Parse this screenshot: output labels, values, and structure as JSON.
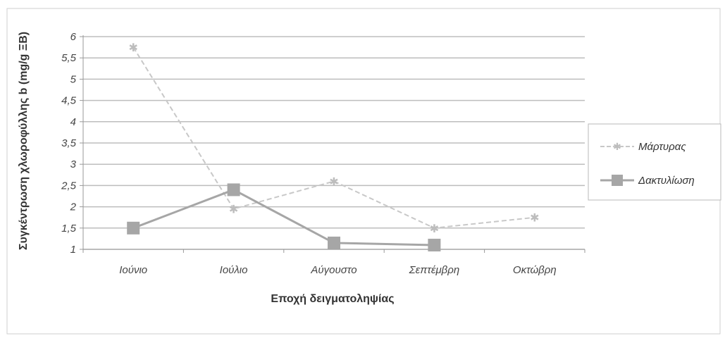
{
  "chart_data": {
    "type": "line",
    "categories": [
      "Ιούνιο",
      "Ιούλιο",
      "Αύγουστο",
      "Σεπτέμβρη",
      "Οκτώβρη"
    ],
    "xlabel": "Εποχή δειγματοληψίας",
    "ylabel": "Συγκέντρωση χλωροφύλλης b (mg/g ΞΒ)",
    "ylim": [
      1,
      6
    ],
    "yticks": [
      "1",
      "1,5",
      "2",
      "2,5",
      "3",
      "3,5",
      "4",
      "4,5",
      "5",
      "5,5",
      "6"
    ],
    "grid": true,
    "legend": "right",
    "series": [
      {
        "name": "Μάρτυρας",
        "values": [
          5.75,
          1.95,
          2.6,
          1.5,
          1.75
        ],
        "color": "#c8c8c8",
        "marker": "star"
      },
      {
        "name": "Δακτυλίωση",
        "values": [
          1.5,
          2.4,
          1.15,
          1.1,
          null
        ],
        "color": "#a6a6a6",
        "marker": "square"
      }
    ]
  }
}
